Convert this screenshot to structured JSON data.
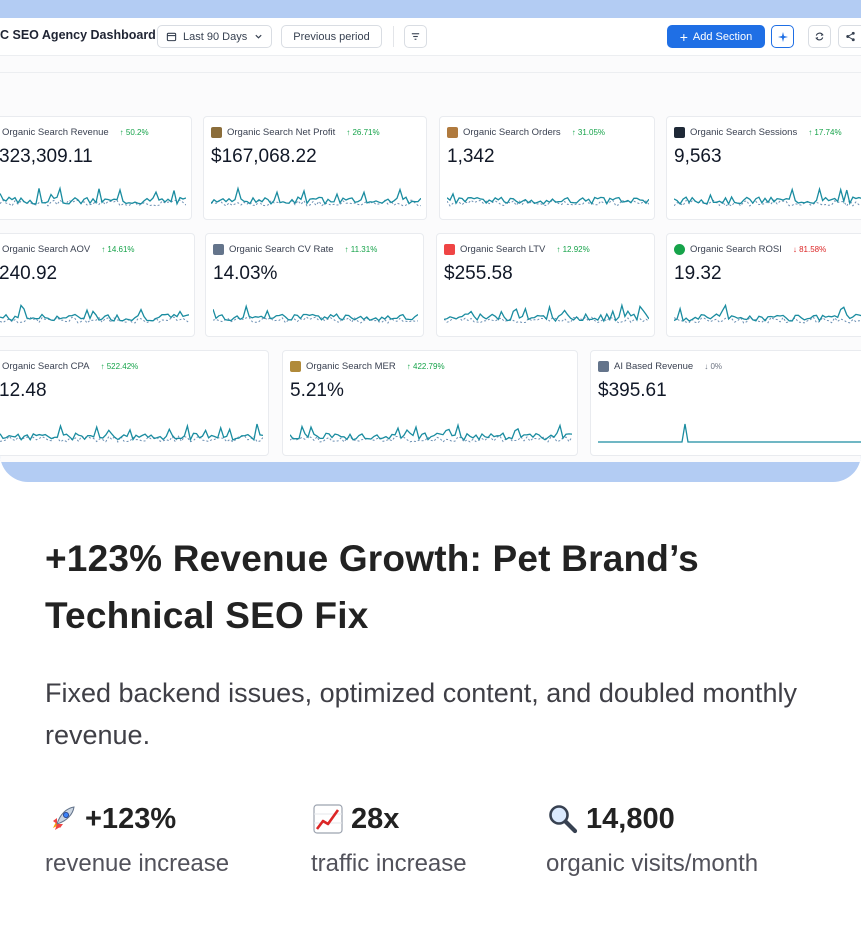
{
  "dashboard": {
    "title": "C SEO Agency Dashboard",
    "date_range": "Last 90 Days",
    "compare": "Previous period",
    "add_section": "Add Section",
    "accent_color": "#1f6fe5",
    "sparkline_color": "#1a8ca0",
    "metrics": [
      {
        "label": "Organic Search Revenue",
        "delta": "↑ 50.2%",
        "value": "323,309.11",
        "icon": "revenue-icon"
      },
      {
        "label": "Organic Search Net Profit",
        "delta": "↑ 26.71%",
        "value": "$167,068.22",
        "icon": "net-profit-icon"
      },
      {
        "label": "Organic Search Orders",
        "delta": "↑ 31.05%",
        "value": "1,342",
        "icon": "orders-box-icon"
      },
      {
        "label": "Organic Search Sessions",
        "delta": "↑ 17.74%",
        "value": "9,563",
        "icon": "sessions-icon"
      },
      {
        "label": "Organic Search AOV",
        "delta": "↑ 14.61%",
        "value": "240.92",
        "icon": "aov-icon"
      },
      {
        "label": "Organic Search CV Rate",
        "delta": "↑ 11.31%",
        "value": "14.03%",
        "icon": "cv-rate-icon"
      },
      {
        "label": "Organic Search LTV",
        "delta": "↑ 12.92%",
        "value": "$255.58",
        "icon": "ltv-chart-icon"
      },
      {
        "label": "Organic Search ROSI",
        "delta": "↓ 81.58%",
        "value": "19.32",
        "icon": "rosi-green-dot-icon"
      },
      {
        "label": "Organic Search CPA",
        "delta": "↑ 522.42%",
        "value": "12.48",
        "icon": "cpa-icon"
      },
      {
        "label": "Organic Search MER",
        "delta": "↑ 422.79%",
        "value": "5.21%",
        "icon": "mer-icon"
      },
      {
        "label": "AI Based Revenue",
        "delta": "↓ 0%",
        "value": "$395.61",
        "icon": "ai-revenue-icon"
      }
    ]
  },
  "case_study": {
    "headline": "+123% Revenue Growth: Pet Brand’s Technical SEO Fix",
    "subtitle": "Fixed backend issues, optimized content, and doubled monthly revenue.",
    "stats": [
      {
        "icon": "rocket-icon",
        "value": "+123%",
        "label": "revenue increase"
      },
      {
        "icon": "chart-increasing-icon",
        "value": "28x",
        "label": "traffic increase"
      },
      {
        "icon": "magnifying-glass-icon",
        "value": "14,800",
        "label": "organic visits/month"
      }
    ]
  }
}
